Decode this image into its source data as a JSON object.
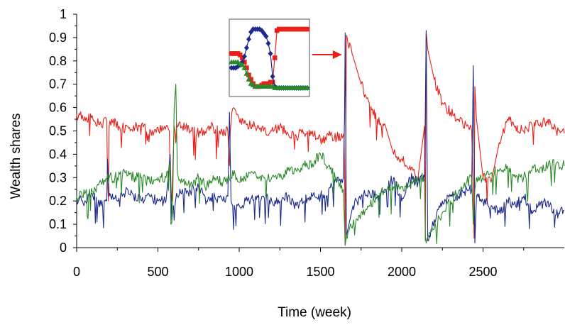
{
  "chart_data": {
    "type": "line",
    "title": "",
    "xlabel": "Time (week)",
    "ylabel": "Wealth shares",
    "xlim": [
      0,
      3000
    ],
    "ylim": [
      0,
      1
    ],
    "x_ticks": [
      0,
      500,
      1000,
      1500,
      2000,
      2500
    ],
    "y_ticks": [
      0,
      0.1,
      0.2,
      0.3,
      0.4,
      0.5,
      0.6,
      0.7,
      0.8,
      0.9,
      1
    ],
    "x_tick_labels": [
      "0",
      "500",
      "1000",
      "1500",
      "2000",
      "2500"
    ],
    "y_tick_labels": [
      "0",
      "0.1",
      "0.2",
      "0.3",
      "0.4",
      "0.5",
      "0.6",
      "0.7",
      "0.8",
      "0.9",
      "1"
    ],
    "grid": false,
    "legend": "none",
    "series": [
      {
        "color": "#e8201a",
        "x": [
          0,
          50,
          100,
          150,
          185,
          190,
          195,
          200,
          215,
          260,
          330,
          400,
          470,
          540,
          570,
          575,
          585,
          600,
          650,
          700,
          760,
          820,
          880,
          930,
          940,
          945,
          955,
          965,
          985,
          1000,
          1050,
          1100,
          1150,
          1200,
          1250,
          1300,
          1350,
          1400,
          1450,
          1500,
          1550,
          1600,
          1645,
          1648,
          1652,
          1660,
          1700,
          1750,
          1800,
          1850,
          1900,
          1950,
          2000,
          2050,
          2100,
          2140,
          2145,
          2150,
          2160,
          2200,
          2250,
          2300,
          2350,
          2400,
          2430,
          2440,
          2445,
          2450,
          2460,
          2500,
          2550,
          2600,
          2650,
          2700,
          2750,
          2800,
          2850,
          2900,
          2950,
          3000
        ],
        "y": [
          0.57,
          0.56,
          0.55,
          0.53,
          0.54,
          0.3,
          0.2,
          0.52,
          0.55,
          0.52,
          0.5,
          0.53,
          0.48,
          0.52,
          0.5,
          0.3,
          0.2,
          0.52,
          0.52,
          0.5,
          0.49,
          0.52,
          0.5,
          0.5,
          0.35,
          0.5,
          0.58,
          0.6,
          0.57,
          0.55,
          0.53,
          0.52,
          0.5,
          0.5,
          0.52,
          0.49,
          0.48,
          0.49,
          0.5,
          0.46,
          0.48,
          0.47,
          0.49,
          0.35,
          0.01,
          0.91,
          0.82,
          0.7,
          0.62,
          0.55,
          0.52,
          0.4,
          0.38,
          0.35,
          0.3,
          0.52,
          0.03,
          0.92,
          0.85,
          0.72,
          0.62,
          0.58,
          0.55,
          0.52,
          0.5,
          0.25,
          0.04,
          0.69,
          0.55,
          0.3,
          0.28,
          0.45,
          0.55,
          0.52,
          0.5,
          0.53,
          0.52,
          0.55,
          0.5,
          0.49
        ]
      },
      {
        "color": "#1c2a8a",
        "x": [
          0,
          50,
          100,
          150,
          185,
          190,
          200,
          250,
          300,
          350,
          400,
          450,
          500,
          550,
          575,
          585,
          595,
          620,
          650,
          700,
          750,
          800,
          850,
          900,
          930,
          940,
          950,
          960,
          1000,
          1050,
          1100,
          1150,
          1200,
          1250,
          1300,
          1350,
          1400,
          1450,
          1500,
          1550,
          1600,
          1640,
          1648,
          1652,
          1660,
          1700,
          1750,
          1800,
          1850,
          1900,
          1950,
          2000,
          2050,
          2100,
          2140,
          2145,
          2150,
          2160,
          2200,
          2250,
          2300,
          2350,
          2400,
          2430,
          2440,
          2450,
          2460,
          2500,
          2550,
          2600,
          2650,
          2700,
          2750,
          2800,
          2850,
          2900,
          2950,
          3000
        ],
        "y": [
          0.21,
          0.2,
          0.22,
          0.18,
          0.2,
          0.38,
          0.22,
          0.2,
          0.24,
          0.22,
          0.2,
          0.22,
          0.2,
          0.2,
          0.4,
          0.12,
          0.18,
          0.22,
          0.25,
          0.24,
          0.26,
          0.2,
          0.22,
          0.2,
          0.22,
          0.58,
          0.2,
          0.18,
          0.18,
          0.2,
          0.22,
          0.22,
          0.2,
          0.2,
          0.22,
          0.18,
          0.2,
          0.22,
          0.22,
          0.25,
          0.28,
          0.3,
          0.55,
          0.92,
          0.05,
          0.18,
          0.22,
          0.24,
          0.22,
          0.25,
          0.3,
          0.2,
          0.3,
          0.28,
          0.3,
          0.58,
          0.93,
          0.03,
          0.12,
          0.2,
          0.22,
          0.22,
          0.25,
          0.25,
          0.78,
          0.02,
          0.22,
          0.2,
          0.18,
          0.15,
          0.2,
          0.18,
          0.22,
          0.16,
          0.18,
          0.2,
          0.14,
          0.16
        ]
      },
      {
        "color": "#2a8a2a",
        "x": [
          0,
          50,
          100,
          150,
          200,
          250,
          300,
          350,
          400,
          450,
          500,
          550,
          575,
          580,
          590,
          600,
          610,
          620,
          650,
          700,
          750,
          800,
          850,
          900,
          950,
          960,
          1000,
          1050,
          1100,
          1150,
          1200,
          1250,
          1300,
          1350,
          1400,
          1450,
          1500,
          1550,
          1600,
          1640,
          1648,
          1652,
          1660,
          1700,
          1750,
          1800,
          1850,
          1900,
          1950,
          2000,
          2050,
          2100,
          2140,
          2145,
          2150,
          2200,
          2250,
          2300,
          2350,
          2400,
          2430,
          2440,
          2450,
          2460,
          2500,
          2550,
          2600,
          2650,
          2700,
          2750,
          2800,
          2850,
          2900,
          2950,
          3000
        ],
        "y": [
          0.22,
          0.23,
          0.24,
          0.28,
          0.3,
          0.3,
          0.32,
          0.3,
          0.3,
          0.28,
          0.3,
          0.3,
          0.35,
          0.1,
          0.15,
          0.6,
          0.7,
          0.32,
          0.28,
          0.27,
          0.3,
          0.26,
          0.3,
          0.28,
          0.3,
          0.33,
          0.28,
          0.3,
          0.32,
          0.3,
          0.3,
          0.3,
          0.33,
          0.33,
          0.35,
          0.36,
          0.4,
          0.35,
          0.3,
          0.25,
          0.1,
          0.01,
          0.05,
          0.1,
          0.15,
          0.18,
          0.22,
          0.25,
          0.26,
          0.26,
          0.27,
          0.3,
          0.3,
          0.05,
          0.02,
          0.08,
          0.15,
          0.2,
          0.24,
          0.28,
          0.3,
          0.1,
          0.25,
          0.3,
          0.3,
          0.32,
          0.33,
          0.35,
          0.3,
          0.3,
          0.33,
          0.34,
          0.35,
          0.36,
          0.35
        ]
      }
    ],
    "inset": {
      "x": [
        0,
        1,
        2,
        3,
        4,
        5,
        6,
        7,
        8,
        9,
        10,
        11,
        12,
        13,
        14,
        15,
        16,
        17,
        18,
        19,
        20,
        21,
        22,
        23,
        24,
        25,
        26,
        27,
        28,
        29,
        30,
        31,
        32,
        33,
        34,
        35
      ],
      "series": [
        {
          "color": "#e8201a",
          "marker": "square",
          "y": [
            0.78,
            0.78,
            0.78,
            0.78,
            0.77,
            0.75,
            0.72,
            0.68,
            0.63,
            0.6,
            0.57,
            0.55,
            0.55,
            0.55,
            0.56,
            0.57,
            0.57,
            0.57,
            0.58,
            0.58,
            0.75,
            0.94,
            0.95,
            0.95,
            0.95,
            0.95,
            0.95,
            0.95,
            0.95,
            0.95,
            0.95,
            0.95,
            0.95,
            0.95,
            0.95,
            0.95
          ]
        },
        {
          "color": "#1c2a8a",
          "marker": "diamond",
          "y": [
            0.68,
            0.68,
            0.68,
            0.69,
            0.7,
            0.72,
            0.76,
            0.82,
            0.88,
            0.93,
            0.95,
            0.95,
            0.95,
            0.95,
            0.94,
            0.92,
            0.9,
            0.85,
            0.78,
            0.62,
            0.55,
            0.54,
            0.54,
            0.54,
            0.54,
            0.54,
            0.54,
            0.54,
            0.54,
            0.54,
            0.54,
            0.54,
            0.54,
            0.54,
            0.54,
            0.54
          ]
        },
        {
          "color": "#2a8a2a",
          "marker": "triangle",
          "y": [
            0.72,
            0.72,
            0.72,
            0.72,
            0.71,
            0.7,
            0.68,
            0.64,
            0.6,
            0.57,
            0.56,
            0.55,
            0.55,
            0.55,
            0.55,
            0.55,
            0.55,
            0.55,
            0.55,
            0.55,
            0.54,
            0.54,
            0.54,
            0.54,
            0.54,
            0.54,
            0.54,
            0.54,
            0.54,
            0.54,
            0.54,
            0.54,
            0.54,
            0.54,
            0.54,
            0.54
          ]
        }
      ],
      "arrow_color": "#e8201a"
    }
  }
}
